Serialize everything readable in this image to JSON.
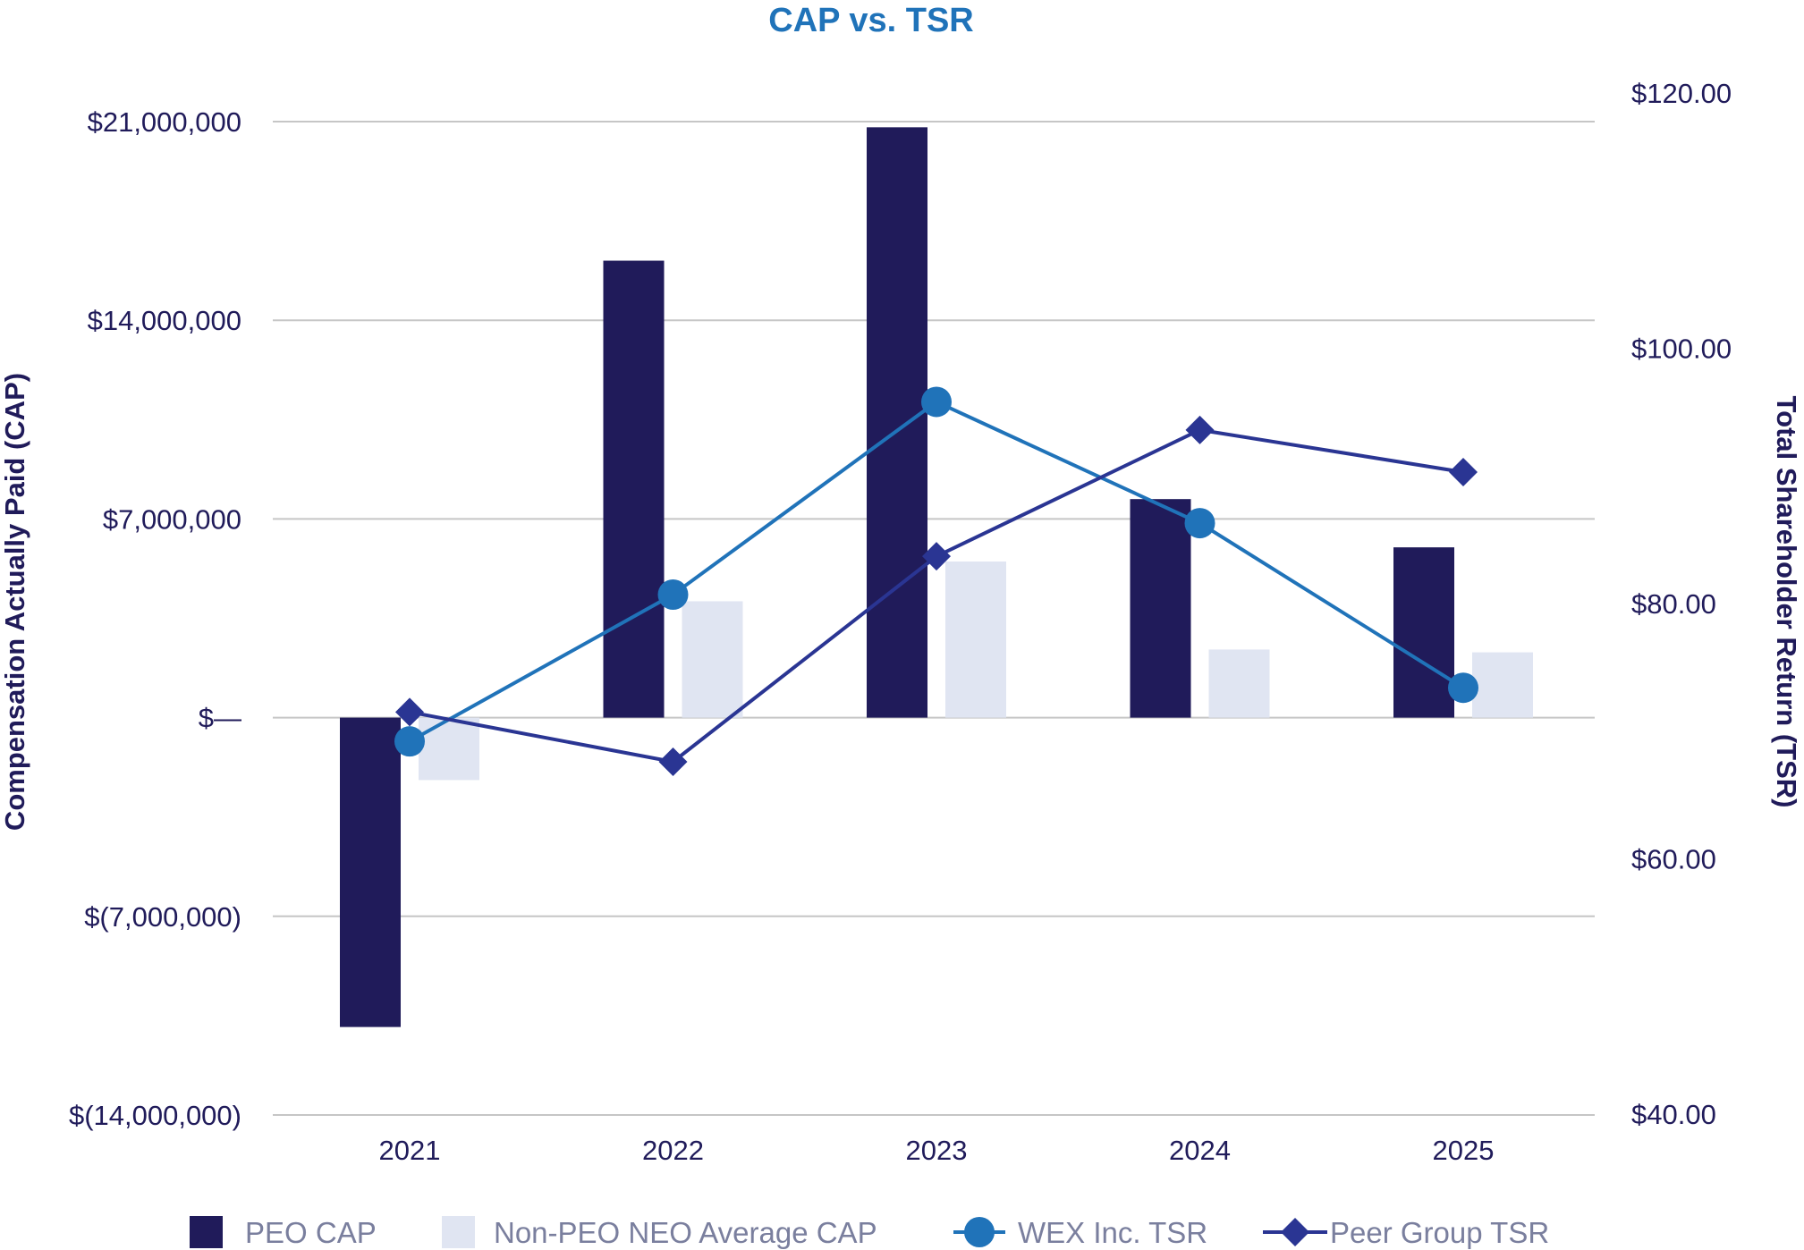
{
  "chart_data": {
    "type": "bar",
    "title": "CAP vs. TSR",
    "categories": [
      "2021",
      "2022",
      "2023",
      "2024",
      "2025"
    ],
    "y_left": {
      "label": "Compensation Actually Paid (CAP)",
      "ylim": [
        -14000000,
        21000000
      ],
      "ticks": [
        21000000,
        14000000,
        7000000,
        0,
        -7000000,
        -14000000
      ],
      "tick_labels": [
        "$21,000,000",
        "$14,000,000",
        "$7,000,000",
        "$—",
        "$(7,000,000)",
        "$(14,000,000)"
      ]
    },
    "y_right": {
      "label": "Total Shareholder Return (TSR)",
      "ylim": [
        40,
        120
      ],
      "ticks": [
        120,
        100,
        80,
        60,
        40
      ],
      "tick_labels": [
        "$120.00",
        "$100.00",
        "$80.00",
        "$60.00",
        "$40.00"
      ]
    },
    "bar_series": [
      {
        "name": "PEO CAP",
        "axis": "left",
        "color": "#201b5a",
        "values": [
          -10900000,
          16100000,
          20800000,
          7700000,
          6000000
        ]
      },
      {
        "name": "Non-PEO NEO Average CAP",
        "axis": "left",
        "color": "#e0e5f2",
        "values": [
          -2200000,
          4100000,
          5500000,
          2400000,
          2300000
        ]
      }
    ],
    "line_series": [
      {
        "name": "WEX Inc. TSR",
        "axis": "right",
        "color": "#2073b9",
        "marker": "circle",
        "values": [
          69.2,
          80.7,
          95.8,
          86.3,
          73.4
        ]
      },
      {
        "name": "Peer Group TSR",
        "axis": "right",
        "color": "#2a3593",
        "marker": "diamond",
        "values": [
          71.5,
          67.6,
          83.7,
          93.6,
          90.3
        ]
      }
    ],
    "grid": true,
    "legend_position": "bottom"
  },
  "colors": {
    "title": "#2073b9",
    "text": "#201b5a",
    "grid": "#c6c6c6"
  }
}
